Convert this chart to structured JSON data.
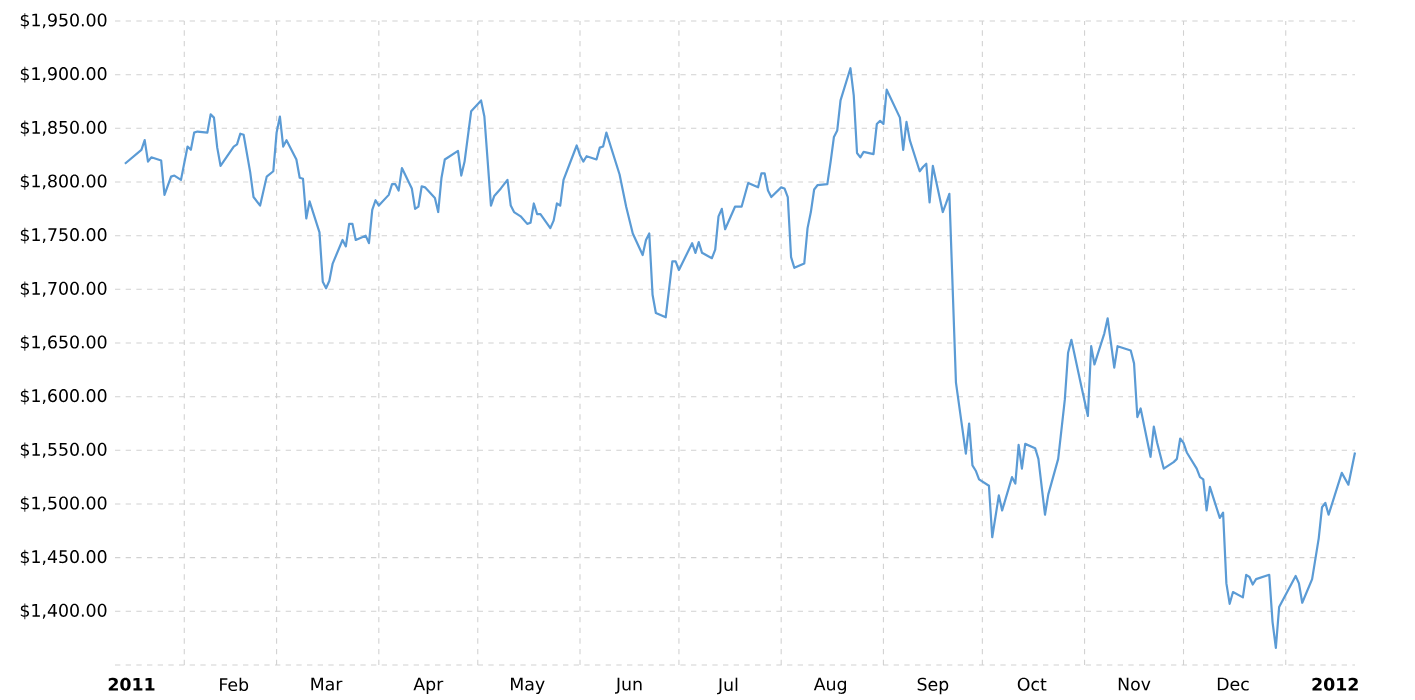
{
  "chart_data": {
    "type": "line",
    "x": [
      "2011-01-14",
      "2011-01-19",
      "2011-01-20",
      "2011-01-21",
      "2011-01-22",
      "2011-01-25",
      "2011-01-26",
      "2011-01-28",
      "2011-01-29",
      "2011-01-31",
      "2011-02-02",
      "2011-02-03",
      "2011-02-04",
      "2011-02-05",
      "2011-02-08",
      "2011-02-09",
      "2011-02-10",
      "2011-02-11",
      "2011-02-12",
      "2011-02-16",
      "2011-02-17",
      "2011-02-18",
      "2011-02-19",
      "2011-02-21",
      "2011-02-22",
      "2011-02-24",
      "2011-02-26",
      "2011-02-28",
      "2011-03-01",
      "2011-03-02",
      "2011-03-03",
      "2011-03-04",
      "2011-03-07",
      "2011-03-08",
      "2011-03-09",
      "2011-03-10",
      "2011-03-11",
      "2011-03-14",
      "2011-03-15",
      "2011-03-16",
      "2011-03-17",
      "2011-03-18",
      "2011-03-21",
      "2011-03-22",
      "2011-03-23",
      "2011-03-24",
      "2011-03-25",
      "2011-03-28",
      "2011-03-29",
      "2011-03-30",
      "2011-03-31",
      "2011-04-01",
      "2011-04-04",
      "2011-04-05",
      "2011-04-06",
      "2011-04-07",
      "2011-04-08",
      "2011-04-11",
      "2011-04-12",
      "2011-04-13",
      "2011-04-14",
      "2011-04-15",
      "2011-04-18",
      "2011-04-19",
      "2011-04-20",
      "2011-04-21",
      "2011-04-25",
      "2011-04-26",
      "2011-04-27",
      "2011-04-29",
      "2011-05-02",
      "2011-05-03",
      "2011-05-05",
      "2011-05-06",
      "2011-05-08",
      "2011-05-10",
      "2011-05-11",
      "2011-05-12",
      "2011-05-14",
      "2011-05-16",
      "2011-05-17",
      "2011-05-18",
      "2011-05-19",
      "2011-05-20",
      "2011-05-23",
      "2011-05-24",
      "2011-05-25",
      "2011-05-26",
      "2011-05-27",
      "2011-05-31",
      "2011-06-01",
      "2011-06-02",
      "2011-06-03",
      "2011-06-06",
      "2011-06-07",
      "2011-06-08",
      "2011-06-09",
      "2011-06-13",
      "2011-06-15",
      "2011-06-17",
      "2011-06-20",
      "2011-06-21",
      "2011-06-22",
      "2011-06-23",
      "2011-06-24",
      "2011-06-27",
      "2011-06-29",
      "2011-06-30",
      "2011-07-01",
      "2011-07-05",
      "2011-07-06",
      "2011-07-07",
      "2011-07-08",
      "2011-07-11",
      "2011-07-12",
      "2011-07-13",
      "2011-07-14",
      "2011-07-15",
      "2011-07-18",
      "2011-07-20",
      "2011-07-22",
      "2011-07-25",
      "2011-07-26",
      "2011-07-27",
      "2011-07-28",
      "2011-07-29",
      "2011-08-01",
      "2011-08-02",
      "2011-08-03",
      "2011-08-04",
      "2011-08-05",
      "2011-08-08",
      "2011-08-09",
      "2011-08-10",
      "2011-08-11",
      "2011-08-12",
      "2011-08-15",
      "2011-08-16",
      "2011-08-17",
      "2011-08-18",
      "2011-08-19",
      "2011-08-22",
      "2011-08-23",
      "2011-08-24",
      "2011-08-25",
      "2011-08-26",
      "2011-08-29",
      "2011-08-30",
      "2011-08-31",
      "2011-09-01",
      "2011-09-02",
      "2011-09-06",
      "2011-09-07",
      "2011-09-08",
      "2011-09-09",
      "2011-09-12",
      "2011-09-13",
      "2011-09-14",
      "2011-09-15",
      "2011-09-16",
      "2011-09-19",
      "2011-09-20",
      "2011-09-21",
      "2011-09-23",
      "2011-09-26",
      "2011-09-27",
      "2011-09-28",
      "2011-09-29",
      "2011-09-30",
      "2011-10-03",
      "2011-10-04",
      "2011-10-06",
      "2011-10-07",
      "2011-10-10",
      "2011-10-11",
      "2011-10-12",
      "2011-10-13",
      "2011-10-14",
      "2011-10-17",
      "2011-10-18",
      "2011-10-20",
      "2011-10-21",
      "2011-10-24",
      "2011-10-26",
      "2011-10-27",
      "2011-10-28",
      "2011-10-31",
      "2011-11-02",
      "2011-11-03",
      "2011-11-04",
      "2011-11-07",
      "2011-11-08",
      "2011-11-10",
      "2011-11-11",
      "2011-11-15",
      "2011-11-16",
      "2011-11-17",
      "2011-11-18",
      "2011-11-21",
      "2011-11-22",
      "2011-11-23",
      "2011-11-25",
      "2011-11-28",
      "2011-11-29",
      "2011-11-30",
      "2011-12-01",
      "2011-12-02",
      "2011-12-05",
      "2011-12-06",
      "2011-12-07",
      "2011-12-08",
      "2011-12-09",
      "2011-12-12",
      "2011-12-13",
      "2011-12-14",
      "2011-12-15",
      "2011-12-16",
      "2011-12-19",
      "2011-12-20",
      "2011-12-21",
      "2011-12-22",
      "2011-12-23",
      "2011-12-27",
      "2011-12-28",
      "2011-12-29",
      "2011-12-30",
      "2012-01-04",
      "2012-01-05",
      "2012-01-06",
      "2012-01-09",
      "2012-01-11",
      "2012-01-12",
      "2012-01-13",
      "2012-01-14",
      "2012-01-18",
      "2012-01-20",
      "2012-01-22"
    ],
    "series": [
      {
        "color": "#5b9bd5",
        "values": [
          1817,
          1830,
          1839,
          1819,
          1823,
          1820,
          1788,
          1805,
          1806,
          1802,
          1833,
          1830,
          1846,
          1847,
          1846,
          1863,
          1860,
          1832,
          1815,
          1833,
          1835,
          1845,
          1844,
          1809,
          1786,
          1778,
          1805,
          1810,
          1846,
          1861,
          1833,
          1839,
          1821,
          1804,
          1803,
          1766,
          1782,
          1753,
          1707,
          1701,
          1708,
          1724,
          1746,
          1740,
          1761,
          1761,
          1746,
          1750,
          1743,
          1774,
          1783,
          1778,
          1788,
          1798,
          1798,
          1792,
          1813,
          1794,
          1775,
          1777,
          1796,
          1795,
          1785,
          1772,
          1804,
          1821,
          1829,
          1806,
          1819,
          1866,
          1876,
          1861,
          1778,
          1787,
          1794,
          1802,
          1778,
          1772,
          1768,
          1761,
          1762,
          1780,
          1770,
          1770,
          1757,
          1764,
          1780,
          1778,
          1802,
          1834,
          1825,
          1819,
          1824,
          1821,
          1832,
          1833,
          1846,
          1807,
          1777,
          1752,
          1732,
          1746,
          1752,
          1695,
          1678,
          1674,
          1726,
          1726,
          1718,
          1743,
          1734,
          1744,
          1734,
          1729,
          1737,
          1768,
          1775,
          1756,
          1777,
          1777,
          1799,
          1795,
          1808,
          1808,
          1792,
          1786,
          1795,
          1794,
          1786,
          1730,
          1720,
          1724,
          1757,
          1772,
          1793,
          1797,
          1798,
          1819,
          1842,
          1848,
          1876,
          1906,
          1881,
          1827,
          1823,
          1828,
          1826,
          1854,
          1857,
          1854,
          1886,
          1860,
          1830,
          1856,
          1839,
          1810,
          1814,
          1817,
          1781,
          1815,
          1772,
          1780,
          1789,
          1613,
          1547,
          1575,
          1536,
          1531,
          1523,
          1517,
          1469,
          1508,
          1494,
          1525,
          1519,
          1555,
          1533,
          1556,
          1552,
          1542,
          1490,
          1509,
          1542,
          1597,
          1641,
          1653,
          1610,
          1582,
          1647,
          1630,
          1659,
          1673,
          1627,
          1647,
          1643,
          1631,
          1581,
          1589,
          1544,
          1572,
          1557,
          1533,
          1539,
          1542,
          1561,
          1557,
          1548,
          1533,
          1525,
          1523,
          1494,
          1516,
          1487,
          1492,
          1426,
          1407,
          1418,
          1413,
          1434,
          1432,
          1425,
          1430,
          1434,
          1390,
          1366,
          1404,
          1433,
          1426,
          1408,
          1430,
          1468,
          1497,
          1501,
          1490,
          1529,
          1518,
          1548
        ]
      }
    ],
    "xlim": [
      "2011-01-11",
      "2012-01-22"
    ],
    "xticks": [
      {
        "value": "2011-01-16",
        "label": "2011"
      },
      {
        "value": "2011-02-01",
        "label": null
      },
      {
        "value": "2011-02-16",
        "label": "Feb"
      },
      {
        "value": "2011-03-01",
        "label": null
      },
      {
        "value": "2011-03-16",
        "label": "Mar"
      },
      {
        "value": "2011-04-01",
        "label": null
      },
      {
        "value": "2011-04-16",
        "label": "Apr"
      },
      {
        "value": "2011-05-01",
        "label": null
      },
      {
        "value": "2011-05-16",
        "label": "May"
      },
      {
        "value": "2011-06-01",
        "label": null
      },
      {
        "value": "2011-06-16",
        "label": "Jun"
      },
      {
        "value": "2011-07-01",
        "label": null
      },
      {
        "value": "2011-07-16",
        "label": "Jul"
      },
      {
        "value": "2011-08-01",
        "label": null
      },
      {
        "value": "2011-08-16",
        "label": "Aug"
      },
      {
        "value": "2011-09-01",
        "label": null
      },
      {
        "value": "2011-09-16",
        "label": "Sep"
      },
      {
        "value": "2011-10-01",
        "label": null
      },
      {
        "value": "2011-10-16",
        "label": "Oct"
      },
      {
        "value": "2011-11-01",
        "label": null
      },
      {
        "value": "2011-11-16",
        "label": "Nov"
      },
      {
        "value": "2011-12-01",
        "label": null
      },
      {
        "value": "2011-12-16",
        "label": "Dec"
      },
      {
        "value": "2012-01-01",
        "label": null
      },
      {
        "value": "2012-01-16",
        "label": "2012"
      }
    ],
    "ylim": [
      1350,
      1950
    ],
    "yticks": [
      {
        "value": 1350,
        "label": null
      },
      {
        "value": 1400,
        "label": "$1,400.00"
      },
      {
        "value": 1450,
        "label": "$1,450.00"
      },
      {
        "value": 1500,
        "label": "$1,500.00"
      },
      {
        "value": 1550,
        "label": "$1,550.00"
      },
      {
        "value": 1600,
        "label": "$1,600.00"
      },
      {
        "value": 1650,
        "label": "$1,650.00"
      },
      {
        "value": 1700,
        "label": "$1,700.00"
      },
      {
        "value": 1750,
        "label": "$1,750.00"
      },
      {
        "value": 1800,
        "label": "$1,800.00"
      },
      {
        "value": 1850,
        "label": "$1,850.00"
      },
      {
        "value": 1900,
        "label": "$1,900.00"
      },
      {
        "value": 1950,
        "label": "$1,950.00"
      }
    ],
    "grid": true
  }
}
